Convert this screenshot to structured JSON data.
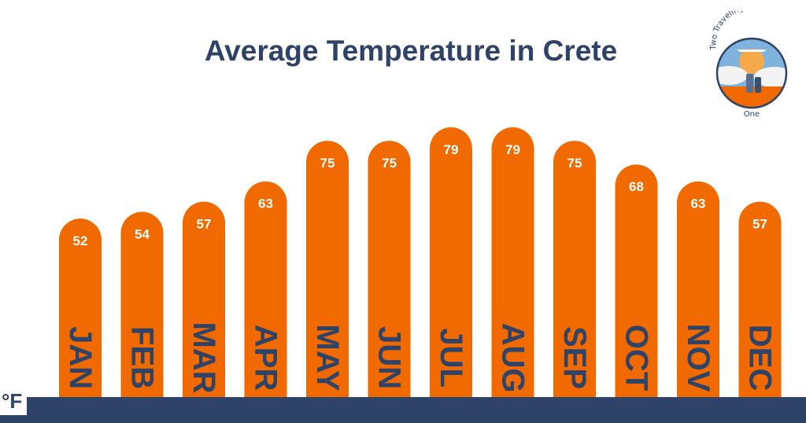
{
  "chart_data": {
    "type": "bar",
    "title": "Average Temperature in Crete",
    "categories": [
      "JAN",
      "FEB",
      "MAR",
      "APR",
      "MAY",
      "JUN",
      "JUL",
      "AUG",
      "SEP",
      "OCT",
      "NOV",
      "DEC"
    ],
    "values": [
      52,
      54,
      57,
      63,
      75,
      75,
      79,
      79,
      75,
      68,
      63,
      57
    ],
    "unit_label": "°F",
    "bar_color": "#f06a00",
    "label_color": "#2f4267",
    "value_label_color": "#ffffff"
  },
  "logo": {
    "line1": "Two Traveling After",
    "line2": "One"
  },
  "colors": {
    "title": "#2f4267",
    "band": "#2f4267"
  }
}
